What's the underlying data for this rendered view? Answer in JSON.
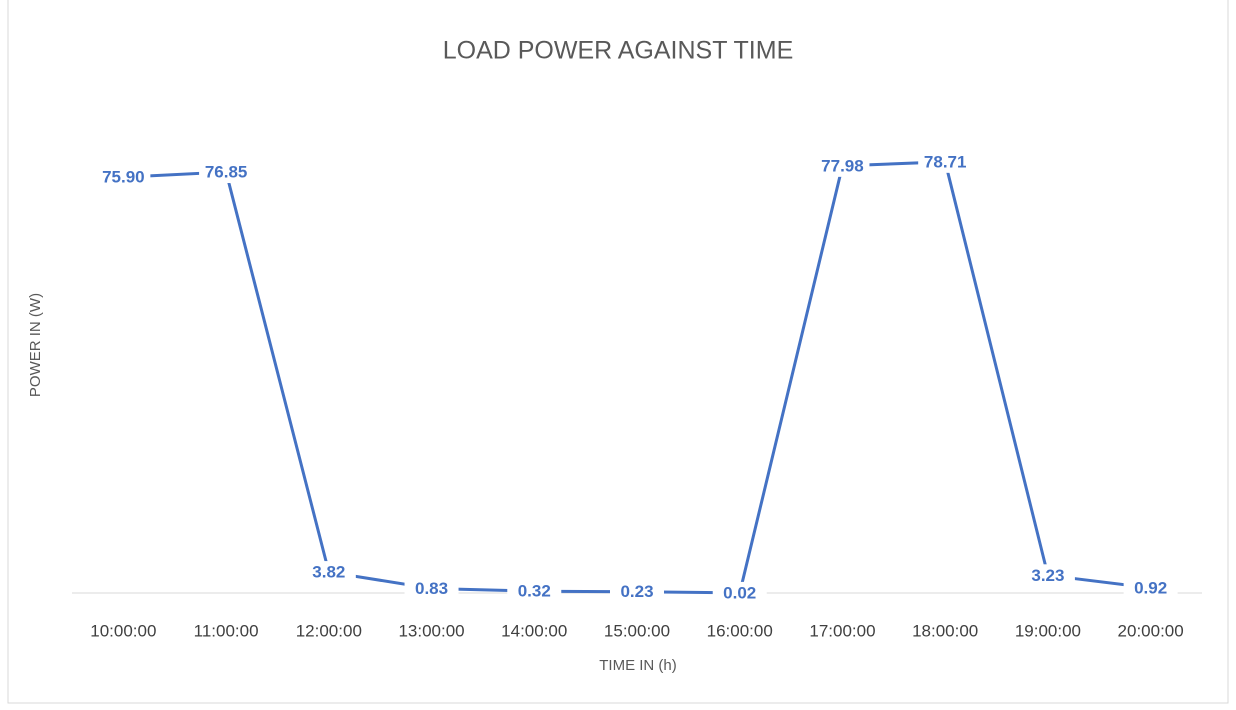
{
  "chart_data": {
    "type": "line",
    "title": "LOAD POWER AGAINST TIME",
    "x_label": "TIME IN (h)",
    "y_label": "POWER IN (W)",
    "categories": [
      "10:00:00",
      "11:00:00",
      "12:00:00",
      "13:00:00",
      "14:00:00",
      "15:00:00",
      "16:00:00",
      "17:00:00",
      "18:00:00",
      "19:00:00",
      "20:00:00"
    ],
    "values": [
      75.9,
      76.85,
      3.82,
      0.83,
      0.32,
      0.23,
      0.02,
      77.98,
      78.71,
      3.23,
      0.92
    ],
    "value_labels": [
      "75.90",
      "76.85",
      "3.82",
      "0.83",
      "0.32",
      "0.23",
      "0.02",
      "77.98",
      "78.71",
      "3.23",
      "0.92"
    ],
    "color": "#4472c4",
    "ylim": [
      0,
      90
    ]
  }
}
